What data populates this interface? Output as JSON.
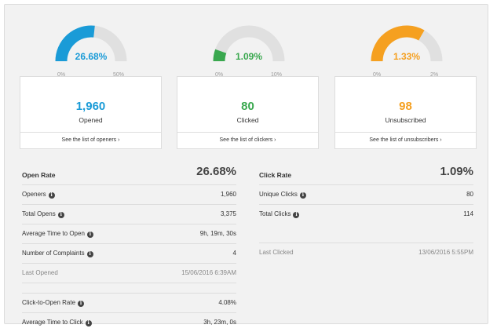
{
  "gauges": [
    {
      "pct_label": "26.68%",
      "min": "0%",
      "max": "50%",
      "fraction": 0.5336,
      "color": "#1a9bd7"
    },
    {
      "pct_label": "1.09%",
      "min": "0%",
      "max": "10%",
      "fraction": 0.109,
      "color": "#3aa84f"
    },
    {
      "pct_label": "1.33%",
      "min": "0%",
      "max": "2%",
      "fraction": 0.665,
      "color": "#f5a020"
    }
  ],
  "cards": [
    {
      "number": "1,960",
      "label": "Opened",
      "link": "See the list of openers ›",
      "color": "#1a9bd7"
    },
    {
      "number": "80",
      "label": "Clicked",
      "link": "See the list of clickers ›",
      "color": "#3aa84f"
    },
    {
      "number": "98",
      "label": "Unsubscribed",
      "link": "See the list of unsubscribers ›",
      "color": "#f5a020"
    }
  ],
  "open_stats": {
    "title": "Open Rate",
    "value": "26.68%",
    "rows": [
      {
        "label": "Openers",
        "value": "1,960"
      },
      {
        "label": "Total Opens",
        "value": "3,375"
      },
      {
        "label": "Average Time to Open",
        "value": "9h, 19m, 30s"
      },
      {
        "label": "Number of Complaints",
        "value": "4"
      },
      {
        "label": "Last Opened",
        "value": "15/06/2016 6:39AM"
      },
      {
        "label": "Click-to-Open Rate",
        "value": "4.08%"
      },
      {
        "label": "Average Time to Click",
        "value": "3h, 23m, 0s"
      }
    ]
  },
  "click_stats": {
    "title": "Click Rate",
    "value": "1.09%",
    "rows": [
      {
        "label": "Unique Clicks",
        "value": "80"
      },
      {
        "label": "Total Clicks",
        "value": "114"
      },
      {
        "label": "Last Clicked",
        "value": "13/06/2016 5:55PM"
      }
    ]
  },
  "icons": {
    "info": "i"
  }
}
